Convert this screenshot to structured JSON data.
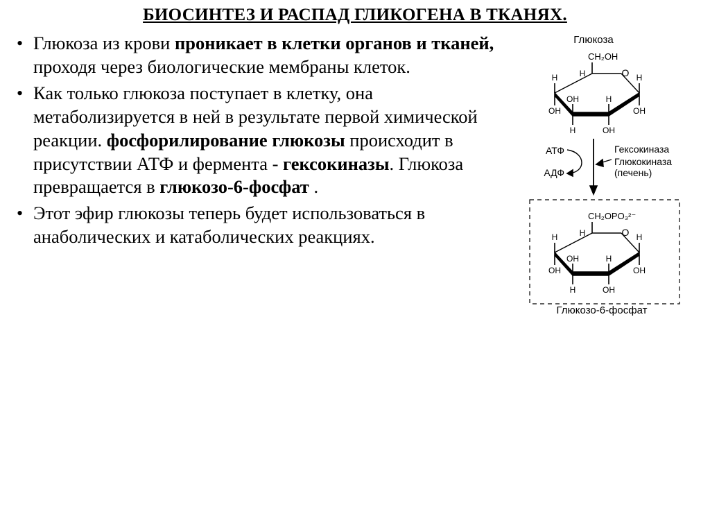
{
  "title": "БИОСИНТЕЗ И РАСПАД ГЛИКОГЕНА В ТКАНЯХ.",
  "bullets": [
    {
      "runs": [
        {
          "t": "Глюкоза из крови ",
          "b": false
        },
        {
          "t": "проникает в клетки органов и тканей,",
          "b": true
        },
        {
          "t": " проходя через биологические мембраны клеток.",
          "b": false
        }
      ]
    },
    {
      "runs": [
        {
          "t": "Как только глюкоза поступает в клетку, она метаболизируется в ней в результате первой химической реакции. ",
          "b": false
        },
        {
          "t": "фосфорилирование глюкозы",
          "b": true
        },
        {
          "t": " происходит в присутствии АТФ и фермента - ",
          "b": false
        },
        {
          "t": "гексокиназы",
          "b": true
        },
        {
          "t": ". Глюкоза превращается в ",
          "b": false
        },
        {
          "t": "глюкозо-6-фосфат",
          "b": true
        },
        {
          "t": " .",
          "b": false
        }
      ]
    },
    {
      "runs": [
        {
          "t": " Этот эфир глюкозы теперь будет использоваться в анаболических и катаболических реакциях.",
          "b": false
        }
      ]
    }
  ],
  "diagram": {
    "glucose_label": "Глюкоза",
    "glucose6p_label": "Глюкозо-6-фосфат",
    "atp": "АТФ",
    "adp": "АДФ",
    "enzyme1": "Гексокиназа",
    "enzyme2": "Глюкокиназа",
    "enzyme_loc": "(печень)",
    "ch2oh": "CH₂OH",
    "ch2opo3": "CH₂OPO₃²⁻",
    "oh": "OH",
    "h": "H",
    "o": "O",
    "colors": {
      "line": "#000000",
      "bg": "#ffffff"
    },
    "font_family": "Arial",
    "label_fontsize": 15,
    "atom_fontsize": 13
  }
}
